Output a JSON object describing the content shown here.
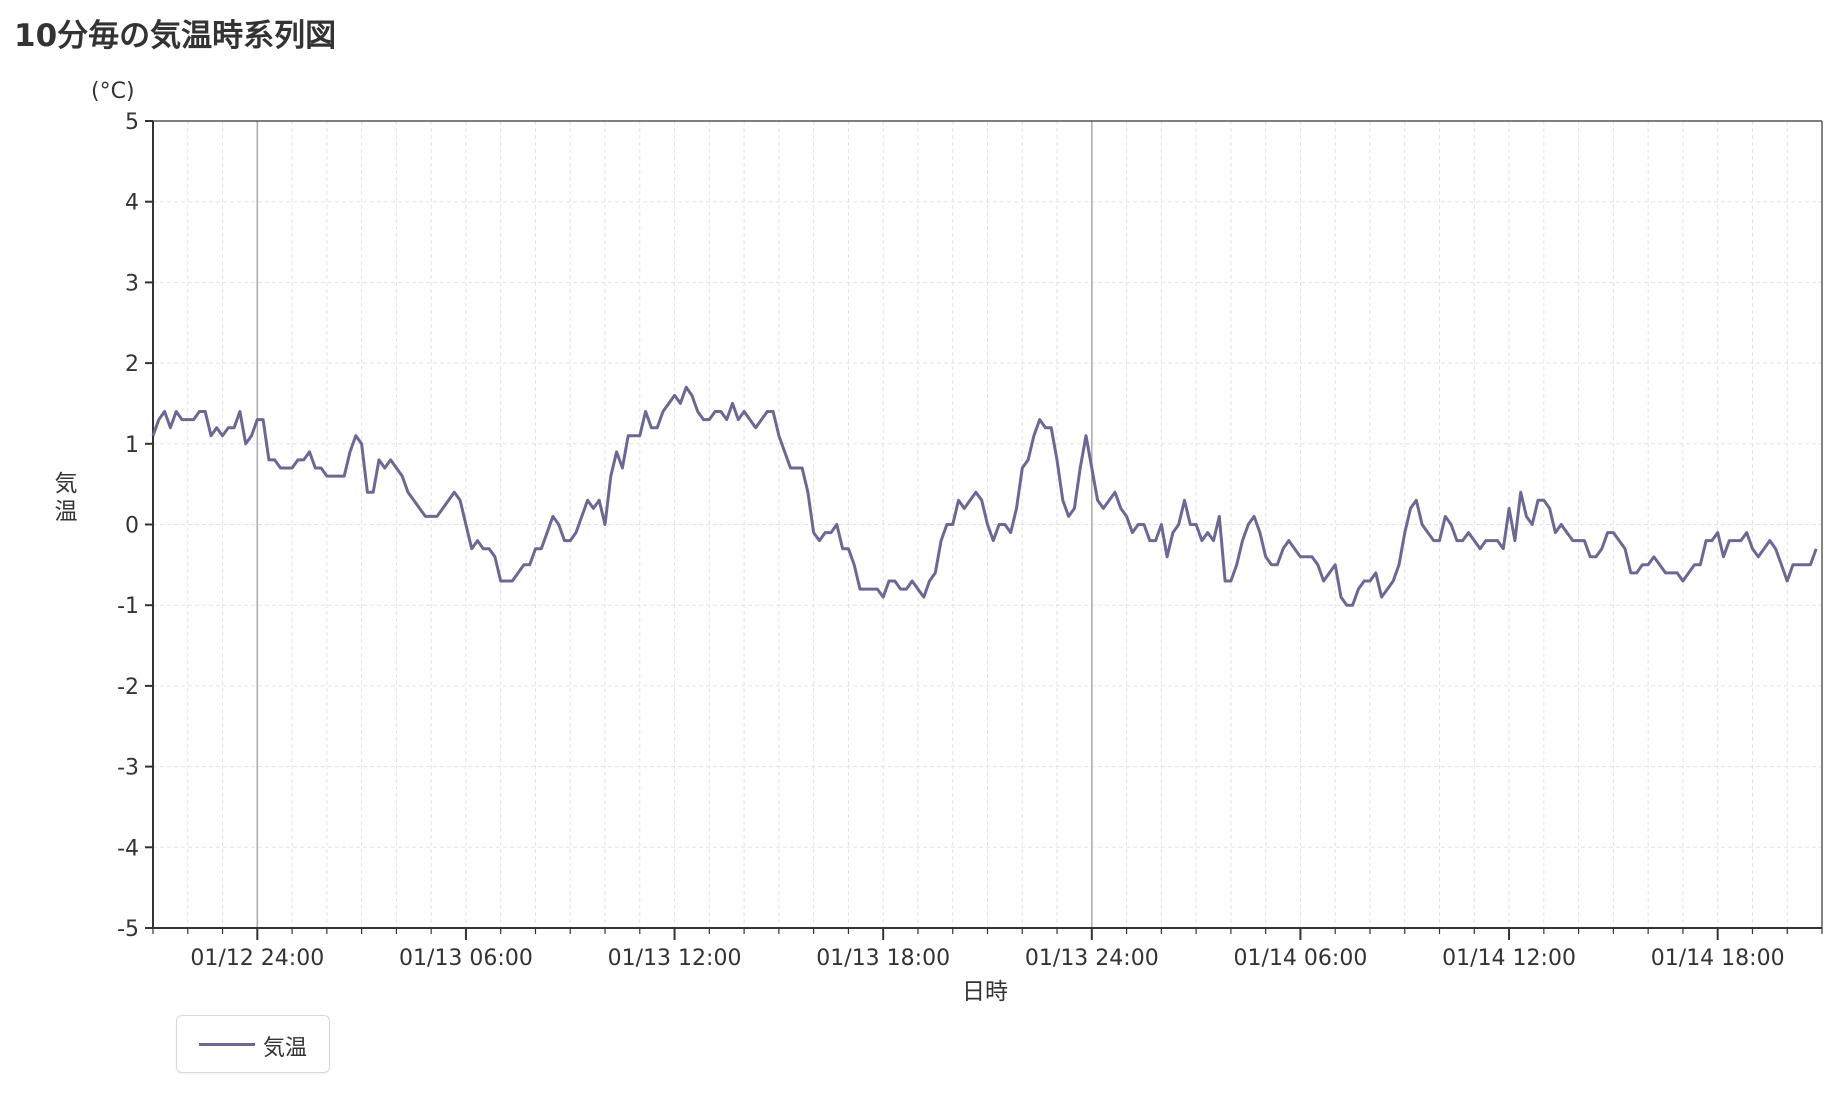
{
  "title": "10分毎の気温時系列図",
  "chart_data": {
    "type": "line",
    "xlabel": "日時",
    "ylabel": "気温",
    "yunit": "(°C)",
    "ylim": [
      -5,
      5
    ],
    "yticks": [
      5,
      4,
      3,
      2,
      1,
      0,
      -1,
      -2,
      -3,
      -4,
      -5
    ],
    "xlim": [
      "01/12 21:00",
      "01/14 21:00"
    ],
    "xticks": [
      "01/12 24:00",
      "01/13 06:00",
      "01/13 12:00",
      "01/13 18:00",
      "01/13 24:00",
      "01/14 06:00",
      "01/14 12:00",
      "01/14 18:00"
    ],
    "x_interval": "10min",
    "grid": true,
    "legend": "bottom-left",
    "series": [
      {
        "name": "気温",
        "color": "#6b6893",
        "values": [
          1.1,
          1.3,
          1.4,
          1.2,
          1.4,
          1.3,
          1.3,
          1.3,
          1.4,
          1.4,
          1.1,
          1.2,
          1.1,
          1.2,
          1.2,
          1.4,
          1.0,
          1.1,
          1.3,
          1.3,
          0.8,
          0.8,
          0.7,
          0.7,
          0.7,
          0.8,
          0.8,
          0.9,
          0.7,
          0.7,
          0.6,
          0.6,
          0.6,
          0.6,
          0.9,
          1.1,
          1.0,
          0.4,
          0.4,
          0.8,
          0.7,
          0.8,
          0.7,
          0.6,
          0.4,
          0.3,
          0.2,
          0.1,
          0.1,
          0.1,
          0.2,
          0.3,
          0.4,
          0.3,
          0.0,
          -0.3,
          -0.2,
          -0.3,
          -0.3,
          -0.4,
          -0.7,
          -0.7,
          -0.7,
          -0.6,
          -0.5,
          -0.5,
          -0.3,
          -0.3,
          -0.1,
          0.1,
          0.0,
          -0.2,
          -0.2,
          -0.1,
          0.1,
          0.3,
          0.2,
          0.3,
          0.0,
          0.6,
          0.9,
          0.7,
          1.1,
          1.1,
          1.1,
          1.4,
          1.2,
          1.2,
          1.4,
          1.5,
          1.6,
          1.5,
          1.7,
          1.6,
          1.4,
          1.3,
          1.3,
          1.4,
          1.4,
          1.3,
          1.5,
          1.3,
          1.4,
          1.3,
          1.2,
          1.3,
          1.4,
          1.4,
          1.1,
          0.9,
          0.7,
          0.7,
          0.7,
          0.4,
          -0.1,
          -0.2,
          -0.1,
          -0.1,
          0.0,
          -0.3,
          -0.3,
          -0.5,
          -0.8,
          -0.8,
          -0.8,
          -0.8,
          -0.9,
          -0.7,
          -0.7,
          -0.8,
          -0.8,
          -0.7,
          -0.8,
          -0.9,
          -0.7,
          -0.6,
          -0.2,
          0.0,
          0.0,
          0.3,
          0.2,
          0.3,
          0.4,
          0.3,
          0.0,
          -0.2,
          0.0,
          0.0,
          -0.1,
          0.2,
          0.7,
          0.8,
          1.1,
          1.3,
          1.2,
          1.2,
          0.8,
          0.3,
          0.1,
          0.2,
          0.7,
          1.1,
          0.7,
          0.3,
          0.2,
          0.3,
          0.4,
          0.2,
          0.1,
          -0.1,
          0.0,
          0.0,
          -0.2,
          -0.2,
          0.0,
          -0.4,
          -0.1,
          0.0,
          0.3,
          0.0,
          0.0,
          -0.2,
          -0.1,
          -0.2,
          0.1,
          -0.7,
          -0.7,
          -0.5,
          -0.2,
          0.0,
          0.1,
          -0.1,
          -0.4,
          -0.5,
          -0.5,
          -0.3,
          -0.2,
          -0.3,
          -0.4,
          -0.4,
          -0.4,
          -0.5,
          -0.7,
          -0.6,
          -0.5,
          -0.9,
          -1.0,
          -1.0,
          -0.8,
          -0.7,
          -0.7,
          -0.6,
          -0.9,
          -0.8,
          -0.7,
          -0.5,
          -0.1,
          0.2,
          0.3,
          0.0,
          -0.1,
          -0.2,
          -0.2,
          0.1,
          0.0,
          -0.2,
          -0.2,
          -0.1,
          -0.2,
          -0.3,
          -0.2,
          -0.2,
          -0.2,
          -0.3,
          0.2,
          -0.2,
          0.4,
          0.1,
          0.0,
          0.3,
          0.3,
          0.2,
          -0.1,
          0.0,
          -0.1,
          -0.2,
          -0.2,
          -0.2,
          -0.4,
          -0.4,
          -0.3,
          -0.1,
          -0.1,
          -0.2,
          -0.3,
          -0.6,
          -0.6,
          -0.5,
          -0.5,
          -0.4,
          -0.5,
          -0.6,
          -0.6,
          -0.6,
          -0.7,
          -0.6,
          -0.5,
          -0.5,
          -0.2,
          -0.2,
          -0.1,
          -0.4,
          -0.2,
          -0.2,
          -0.2,
          -0.1,
          -0.3,
          -0.4,
          -0.3,
          -0.2,
          -0.3,
          -0.5,
          -0.7,
          -0.5,
          -0.5,
          -0.5,
          -0.5,
          -0.3
        ]
      }
    ]
  }
}
